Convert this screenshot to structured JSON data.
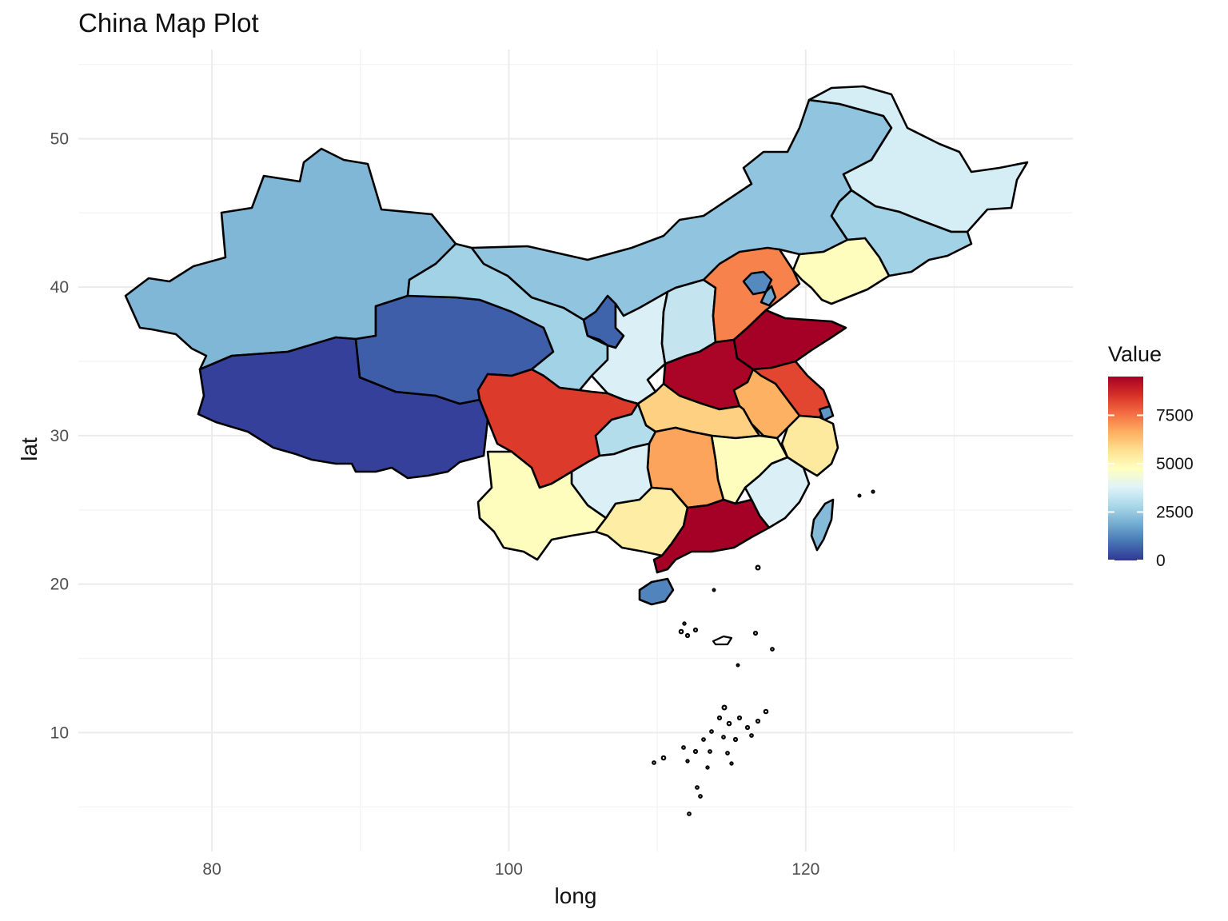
{
  "chart_data": {
    "type": "choropleth",
    "title": "China Map Plot",
    "xlabel": "long",
    "ylabel": "lat",
    "xlim": [
      71,
      138
    ],
    "ylim": [
      2,
      56
    ],
    "x_ticks": [
      80,
      100,
      120
    ],
    "y_ticks": [
      10,
      20,
      30,
      40,
      50
    ],
    "grid": true,
    "legend": {
      "title": "Value",
      "placement": "right",
      "ticks": [
        0,
        2500,
        5000,
        7500
      ],
      "tick_labels": [
        "0",
        "2500",
        "5000",
        "7500"
      ],
      "range": [
        0,
        9500
      ],
      "colors": [
        "#313695",
        "#4575b4",
        "#74add1",
        "#abd9e9",
        "#e0f3f8",
        "#ffffbf",
        "#fee090",
        "#fdae61",
        "#f46d43",
        "#d73027",
        "#a50026"
      ]
    },
    "regions": [
      {
        "id": "xinjiang",
        "value": 2100
      },
      {
        "id": "tibet",
        "value": 150
      },
      {
        "id": "qinghai",
        "value": 600
      },
      {
        "id": "gansu",
        "value": 2700
      },
      {
        "id": "inner-mongolia",
        "value": 2400
      },
      {
        "id": "heilongjiang",
        "value": 3600
      },
      {
        "id": "jilin",
        "value": 2700
      },
      {
        "id": "liaoning",
        "value": 4800
      },
      {
        "id": "ningxia",
        "value": 700
      },
      {
        "id": "shaanxi",
        "value": 3700
      },
      {
        "id": "shanxi",
        "value": 3300
      },
      {
        "id": "hebei",
        "value": 7300
      },
      {
        "id": "beijing",
        "value": 1300
      },
      {
        "id": "tianjin",
        "value": 1800
      },
      {
        "id": "shandong",
        "value": 9500
      },
      {
        "id": "henan",
        "value": 9400
      },
      {
        "id": "jiangsu",
        "value": 8200
      },
      {
        "id": "shanghai",
        "value": 1500
      },
      {
        "id": "anhui",
        "value": 6600
      },
      {
        "id": "hubei",
        "value": 6000
      },
      {
        "id": "sichuan",
        "value": 8400
      },
      {
        "id": "chongqing",
        "value": 3000
      },
      {
        "id": "zhejiang",
        "value": 5400
      },
      {
        "id": "jiangxi",
        "value": 4800
      },
      {
        "id": "hunan",
        "value": 6800
      },
      {
        "id": "guizhou",
        "value": 3700
      },
      {
        "id": "yunnan",
        "value": 4800
      },
      {
        "id": "guangxi",
        "value": 5300
      },
      {
        "id": "guangdong",
        "value": 9500
      },
      {
        "id": "fujian",
        "value": 3700
      },
      {
        "id": "hainan",
        "value": 1200
      },
      {
        "id": "taiwan",
        "value": 2200
      }
    ]
  }
}
